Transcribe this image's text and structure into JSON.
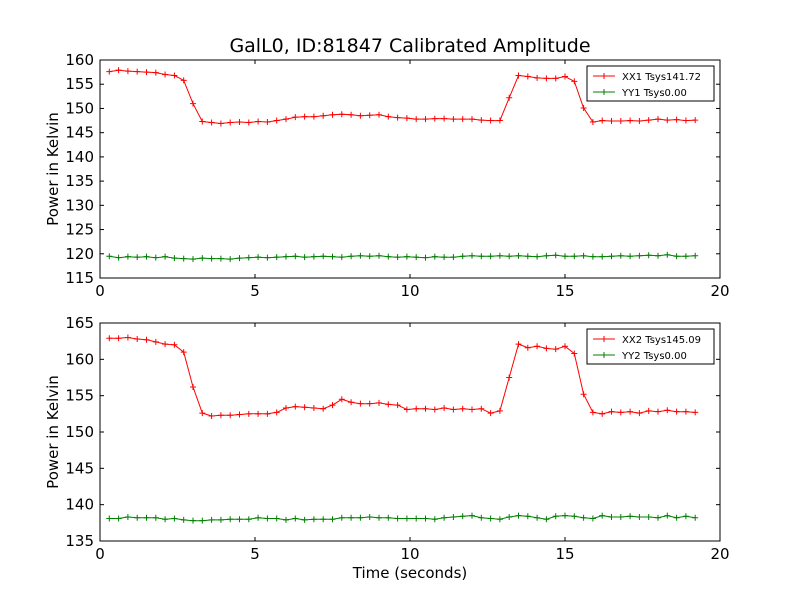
{
  "figure": {
    "title": "GalL0, ID:81847 Calibrated Amplitude",
    "xlabel": "Time (seconds)"
  },
  "chart_data": [
    {
      "type": "line",
      "title": "GalL0, ID:81847 Calibrated Amplitude",
      "xlabel": "",
      "ylabel": "Power in Kelvin",
      "xlim": [
        0,
        20
      ],
      "ylim": [
        115,
        160
      ],
      "xticks": [
        0,
        5,
        10,
        15,
        20
      ],
      "yticks": [
        115,
        120,
        125,
        130,
        135,
        140,
        145,
        150,
        155,
        160
      ],
      "grid": false,
      "legend_position": "top-right",
      "x": [
        0.3,
        0.6,
        0.9,
        1.2,
        1.5,
        1.8,
        2.1,
        2.4,
        2.7,
        3.0,
        3.3,
        3.6,
        3.9,
        4.2,
        4.5,
        4.8,
        5.1,
        5.4,
        5.7,
        6.0,
        6.3,
        6.6,
        6.9,
        7.2,
        7.5,
        7.8,
        8.1,
        8.4,
        8.7,
        9.0,
        9.3,
        9.6,
        9.9,
        10.2,
        10.5,
        10.8,
        11.1,
        11.4,
        11.7,
        12.0,
        12.3,
        12.6,
        12.9,
        13.2,
        13.5,
        13.8,
        14.1,
        14.4,
        14.7,
        15.0,
        15.3,
        15.6,
        15.9,
        16.2,
        16.5,
        16.8,
        17.1,
        17.4,
        17.7,
        18.0,
        18.3,
        18.6,
        18.9,
        19.2
      ],
      "series": [
        {
          "name": "XX1 Tsys141.72",
          "color": "#ff0000",
          "values": [
            157.6,
            157.9,
            157.7,
            157.6,
            157.5,
            157.4,
            157.0,
            156.8,
            155.8,
            151.0,
            147.3,
            147.1,
            146.9,
            147.1,
            147.2,
            147.1,
            147.3,
            147.2,
            147.5,
            147.8,
            148.2,
            148.3,
            148.3,
            148.5,
            148.7,
            148.8,
            148.7,
            148.5,
            148.6,
            148.7,
            148.3,
            148.1,
            148.0,
            147.8,
            147.8,
            147.9,
            147.9,
            147.8,
            147.8,
            147.8,
            147.6,
            147.5,
            147.5,
            152.2,
            156.8,
            156.6,
            156.3,
            156.2,
            156.2,
            156.6,
            155.6,
            150.1,
            147.2,
            147.5,
            147.4,
            147.4,
            147.5,
            147.4,
            147.6,
            147.8,
            147.6,
            147.7,
            147.5,
            147.6
          ]
        },
        {
          "name": "YY1 Tsys0.00",
          "color": "#008000",
          "values": [
            119.5,
            119.2,
            119.4,
            119.3,
            119.4,
            119.2,
            119.4,
            119.1,
            119.0,
            118.9,
            119.1,
            119.0,
            119.0,
            118.9,
            119.1,
            119.2,
            119.3,
            119.2,
            119.3,
            119.4,
            119.5,
            119.3,
            119.4,
            119.5,
            119.4,
            119.3,
            119.5,
            119.6,
            119.5,
            119.6,
            119.4,
            119.3,
            119.4,
            119.3,
            119.2,
            119.4,
            119.3,
            119.3,
            119.5,
            119.6,
            119.5,
            119.5,
            119.6,
            119.5,
            119.6,
            119.5,
            119.4,
            119.6,
            119.7,
            119.5,
            119.5,
            119.6,
            119.4,
            119.4,
            119.5,
            119.6,
            119.5,
            119.6,
            119.7,
            119.6,
            119.8,
            119.5,
            119.5,
            119.6
          ]
        }
      ]
    },
    {
      "type": "line",
      "title": "",
      "xlabel": "Time (seconds)",
      "ylabel": "Power in Kelvin",
      "xlim": [
        0,
        20
      ],
      "ylim": [
        135,
        165
      ],
      "xticks": [
        0,
        5,
        10,
        15,
        20
      ],
      "yticks": [
        135,
        140,
        145,
        150,
        155,
        160,
        165
      ],
      "grid": false,
      "legend_position": "top-right",
      "x": [
        0.3,
        0.6,
        0.9,
        1.2,
        1.5,
        1.8,
        2.1,
        2.4,
        2.7,
        3.0,
        3.3,
        3.6,
        3.9,
        4.2,
        4.5,
        4.8,
        5.1,
        5.4,
        5.7,
        6.0,
        6.3,
        6.6,
        6.9,
        7.2,
        7.5,
        7.8,
        8.1,
        8.4,
        8.7,
        9.0,
        9.3,
        9.6,
        9.9,
        10.2,
        10.5,
        10.8,
        11.1,
        11.4,
        11.7,
        12.0,
        12.3,
        12.6,
        12.9,
        13.2,
        13.5,
        13.8,
        14.1,
        14.4,
        14.7,
        15.0,
        15.3,
        15.6,
        15.9,
        16.2,
        16.5,
        16.8,
        17.1,
        17.4,
        17.7,
        18.0,
        18.3,
        18.6,
        18.9,
        19.2
      ],
      "series": [
        {
          "name": "XX2 Tsys145.09",
          "color": "#ff0000",
          "values": [
            162.9,
            162.9,
            163.0,
            162.8,
            162.7,
            162.4,
            162.1,
            162.0,
            161.0,
            156.2,
            152.6,
            152.2,
            152.3,
            152.3,
            152.4,
            152.5,
            152.5,
            152.5,
            152.7,
            153.3,
            153.5,
            153.4,
            153.3,
            153.2,
            153.7,
            154.5,
            154.1,
            153.9,
            153.9,
            154.0,
            153.8,
            153.7,
            153.1,
            153.2,
            153.2,
            153.1,
            153.3,
            153.1,
            153.2,
            153.1,
            153.2,
            152.6,
            152.9,
            157.5,
            162.1,
            161.6,
            161.8,
            161.5,
            161.4,
            161.8,
            160.8,
            155.2,
            152.7,
            152.5,
            152.8,
            152.7,
            152.8,
            152.6,
            152.9,
            152.8,
            153.0,
            152.8,
            152.8,
            152.7
          ]
        },
        {
          "name": "YY2 Tsys0.00",
          "color": "#008000",
          "values": [
            138.1,
            138.1,
            138.3,
            138.2,
            138.2,
            138.2,
            138.0,
            138.1,
            137.9,
            137.8,
            137.8,
            137.9,
            137.9,
            138.0,
            138.0,
            138.0,
            138.2,
            138.1,
            138.1,
            137.9,
            138.1,
            137.9,
            138.0,
            138.0,
            138.0,
            138.2,
            138.2,
            138.2,
            138.3,
            138.2,
            138.2,
            138.1,
            138.1,
            138.1,
            138.1,
            138.0,
            138.2,
            138.3,
            138.4,
            138.5,
            138.2,
            138.1,
            138.0,
            138.3,
            138.5,
            138.4,
            138.2,
            138.0,
            138.4,
            138.5,
            138.4,
            138.2,
            138.1,
            138.5,
            138.3,
            138.3,
            138.4,
            138.3,
            138.3,
            138.2,
            138.5,
            138.2,
            138.4,
            138.2
          ]
        }
      ]
    }
  ]
}
